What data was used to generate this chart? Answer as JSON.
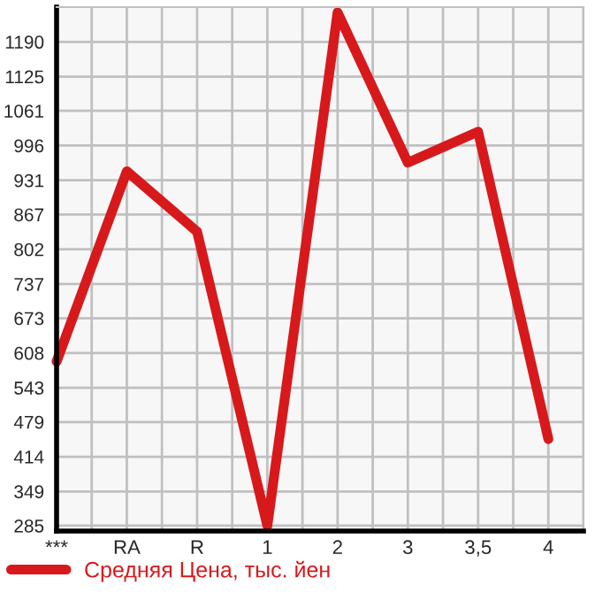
{
  "chart_data": {
    "type": "line",
    "categories": [
      "***",
      "RA",
      "R",
      "1",
      "2",
      "3",
      "3,5",
      "4"
    ],
    "series": [
      {
        "name": "Средняя Цена, тыс. йен",
        "color": "#d7191c",
        "values": [
          592,
          948,
          835,
          285,
          1245,
          964,
          1022,
          447
        ]
      }
    ],
    "ylim": [
      275,
      1255
    ],
    "yticks": [
      285,
      349,
      414,
      479,
      543,
      608,
      673,
      737,
      802,
      867,
      931,
      996,
      1061,
      1125,
      1190
    ],
    "grid": true,
    "legend": "bottom",
    "marker": "none",
    "line_style": "solid"
  }
}
